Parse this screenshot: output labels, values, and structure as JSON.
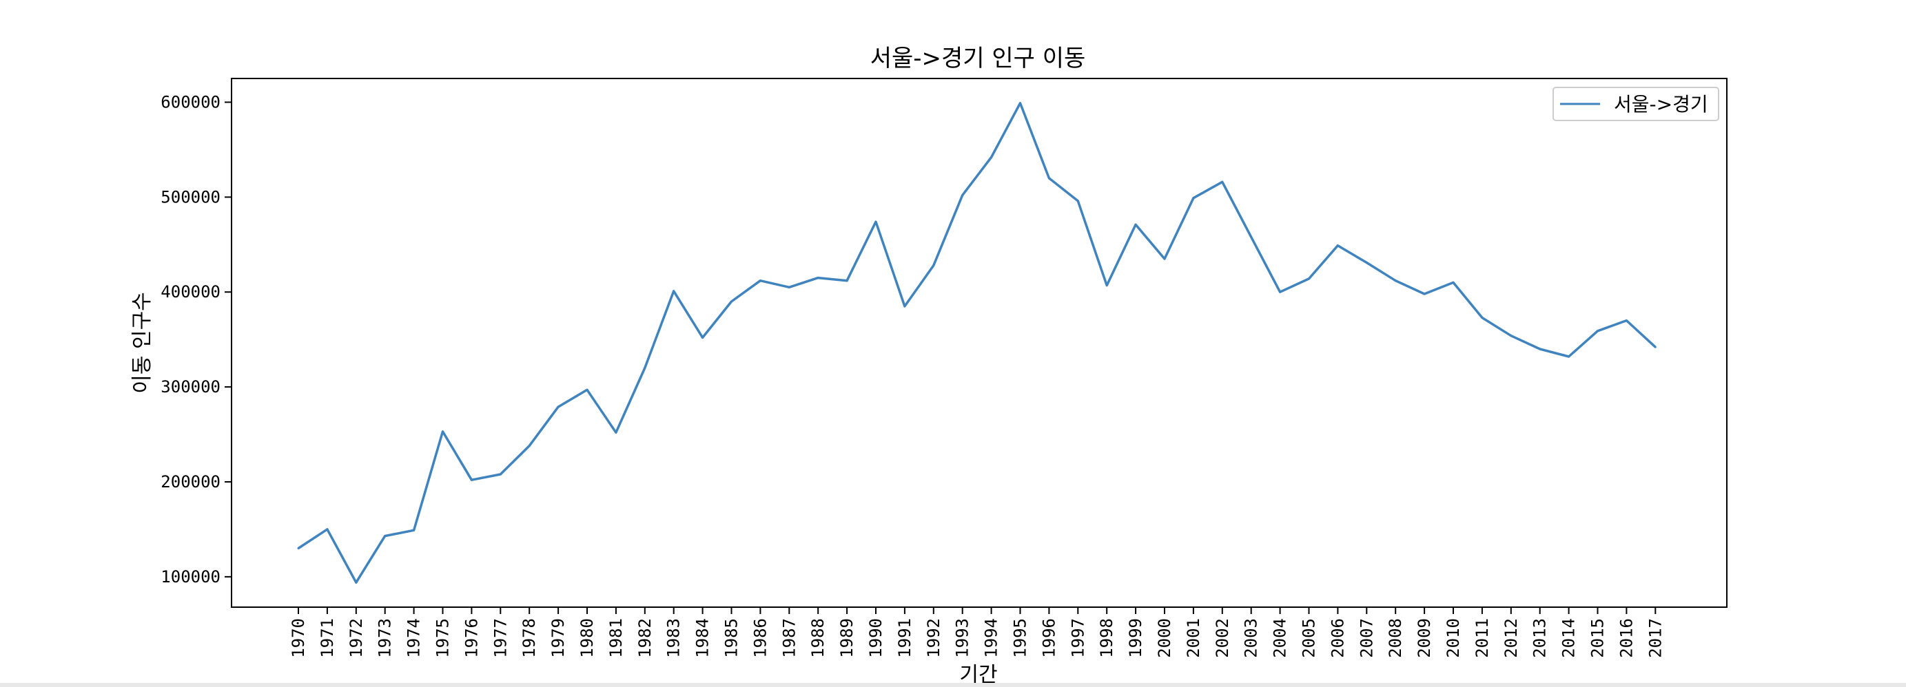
{
  "chart_data": {
    "type": "line",
    "title": "서울->경기 인구 이동",
    "xlabel": "기간",
    "ylabel": "이동 인구수",
    "x": [
      "1970",
      "1971",
      "1972",
      "1973",
      "1974",
      "1975",
      "1976",
      "1977",
      "1978",
      "1979",
      "1980",
      "1981",
      "1982",
      "1983",
      "1984",
      "1985",
      "1986",
      "1987",
      "1988",
      "1989",
      "1990",
      "1991",
      "1992",
      "1993",
      "1994",
      "1995",
      "1996",
      "1997",
      "1998",
      "1999",
      "2000",
      "2001",
      "2002",
      "2003",
      "2004",
      "2005",
      "2006",
      "2007",
      "2008",
      "2009",
      "2010",
      "2011",
      "2012",
      "2013",
      "2014",
      "2015",
      "2016",
      "2017"
    ],
    "series": [
      {
        "name": "서울->경기",
        "color": "#3f83bf",
        "values": [
          130000,
          150000,
          94000,
          143000,
          149000,
          253000,
          202000,
          208000,
          238000,
          279000,
          297000,
          252000,
          320000,
          401000,
          352000,
          390000,
          412000,
          405000,
          415000,
          412000,
          474000,
          385000,
          428000,
          502000,
          542000,
          599000,
          520000,
          496000,
          407000,
          471000,
          435000,
          499000,
          516000,
          458000,
          400000,
          414000,
          449000,
          431000,
          412000,
          398000,
          410000,
          373000,
          354000,
          340000,
          332000,
          359000,
          370000,
          342000
        ]
      }
    ],
    "yticks": [
      "100000",
      "200000",
      "300000",
      "400000",
      "500000",
      "600000"
    ],
    "ylim": [
      68000,
      625000
    ],
    "grid": false,
    "legend_position": "top-right"
  }
}
